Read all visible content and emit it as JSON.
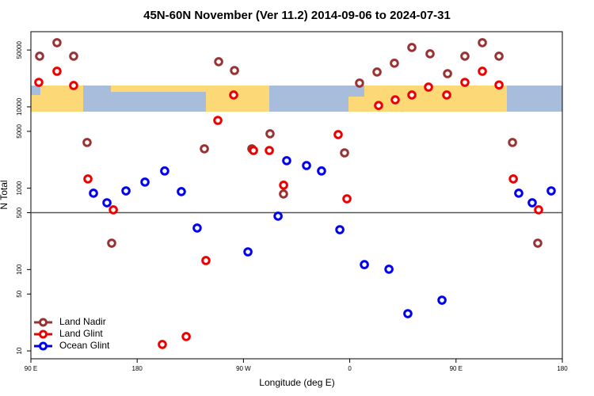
{
  "chart_data": {
    "type": "scatter",
    "title": "45N-60N November (Ver 11.2)   2014-09-06 to 2024-07-31",
    "x_label": "Longitude (deg E)",
    "y_label": "N Total",
    "xlim": [
      90,
      540
    ],
    "xticks": [
      {
        "value": 90,
        "label": "90 E"
      },
      180,
      {
        "value": 270,
        "label": "90 W"
      },
      {
        "value": 360,
        "label": "0"
      },
      {
        "value": 450,
        "label": "90 E"
      },
      {
        "value": 540,
        "label": "180"
      }
    ],
    "ylim": [
      8,
      84000
    ],
    "y_scale": "log",
    "yticks": [
      10,
      50,
      100,
      500,
      1000,
      5000,
      10000,
      50000
    ],
    "hline": 500,
    "legend": "bottom-left",
    "grid": false,
    "series": [
      {
        "name": "Land Nadir",
        "color": "#993333",
        "x": [
          97.4,
          112.1,
          126.2,
          137.6,
          158.4,
          236.9,
          249,
          262.4,
          277.1,
          292.5,
          303.9,
          355.6,
          368.3,
          383.1,
          397.8,
          412.6,
          428,
          442.8,
          457.5,
          472.3,
          486.4,
          497.8,
          519.2
        ],
        "values": [
          42000,
          61500,
          42000,
          3650,
          211,
          3050,
          35900,
          28000,
          3050,
          4670,
          849,
          2720,
          19600,
          26800,
          34400,
          53700,
          44900,
          25600,
          42000,
          61500,
          42000,
          3650,
          211
        ]
      },
      {
        "name": "Land Glint",
        "color": "#ee0000",
        "x": [
          96.7,
          112.1,
          126.2,
          138.3,
          159.8,
          201.3,
          221.5,
          238.2,
          248.3,
          261.7,
          278.5,
          291.9,
          304,
          350.2,
          357.6,
          384.4,
          398.5,
          412.6,
          426.7,
          442.1,
          457.5,
          472.3,
          486.4,
          498.5,
          519.9
        ],
        "values": [
          20000,
          27400,
          18300,
          1300,
          542,
          12,
          15,
          129,
          6820,
          14000,
          2910,
          2910,
          1090,
          4560,
          741,
          10400,
          12200,
          14000,
          17500,
          14000,
          20000,
          27400,
          18600,
          1300,
          542
        ]
      },
      {
        "name": "Ocean Glint",
        "color": "#0000ee",
        "x": [
          143,
          154.4,
          170.5,
          186.6,
          203.3,
          217.4,
          230.8,
          273.8,
          299.3,
          306.6,
          323.4,
          336.1,
          351.6,
          372.4,
          393.2,
          409.2,
          438.1,
          503.1,
          514.5,
          530.6
        ],
        "values": [
          868,
          662,
          927,
          1190,
          1630,
          908,
          324,
          165,
          453,
          2180,
          1900,
          1630,
          309,
          115,
          101,
          28.7,
          42,
          868,
          662,
          927
        ]
      }
    ]
  }
}
